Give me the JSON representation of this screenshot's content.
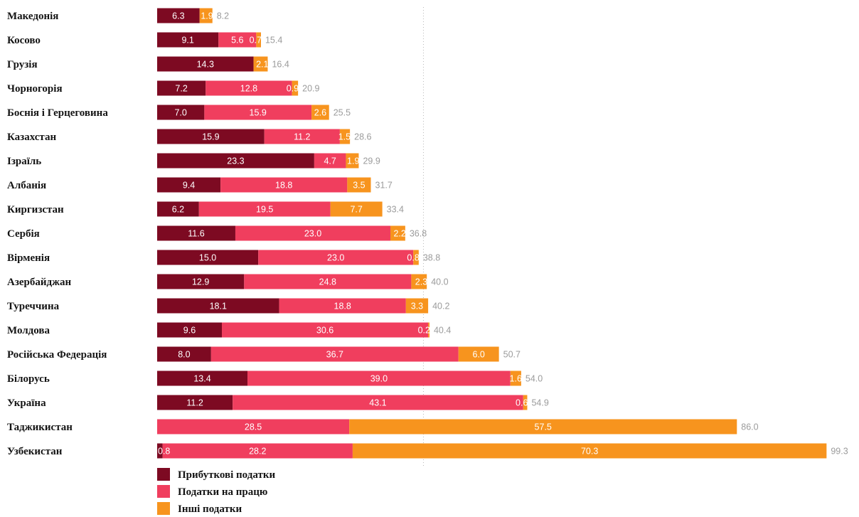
{
  "chart_data": {
    "type": "bar",
    "orientation": "horizontal",
    "stacked": true,
    "xlim": [
      0,
      100
    ],
    "grid": false,
    "legend_position": "bottom-left",
    "reference_line": 39.5,
    "categories": [
      "Македонія",
      "Косово",
      "Грузія",
      "Чорногорія",
      "Боснія і Герцеговина",
      "Казахстан",
      "Ізраїль",
      "Албанія",
      "Киргизстан",
      "Сербія",
      "Вірменія",
      "Азербайджан",
      "Туреччина",
      "Молдова",
      "Російська Федерація",
      "Білорусь",
      "Україна",
      "Таджикистан",
      "Узбекистан"
    ],
    "series": [
      {
        "name": "Прибуткові податки",
        "color": "#7d0a22",
        "values": [
          6.3,
          9.1,
          14.3,
          7.2,
          7.0,
          15.9,
          23.3,
          9.4,
          6.2,
          11.6,
          15.0,
          12.9,
          18.1,
          9.6,
          8.0,
          13.4,
          11.2,
          0,
          0.8
        ]
      },
      {
        "name": "Податки на працю",
        "color": "#f03e5e",
        "values": [
          0,
          5.6,
          0,
          12.8,
          15.9,
          11.2,
          4.7,
          18.8,
          19.5,
          23.0,
          23.0,
          24.8,
          18.8,
          30.6,
          36.7,
          39.0,
          43.1,
          28.5,
          28.2
        ]
      },
      {
        "name": "Інші податки",
        "color": "#f7941e",
        "values": [
          1.9,
          0.7,
          2.1,
          0.9,
          2.6,
          1.5,
          1.9,
          3.5,
          7.7,
          2.2,
          0.8,
          2.3,
          3.3,
          0.2,
          6.0,
          1.6,
          0.6,
          57.5,
          70.3
        ]
      }
    ],
    "totals": [
      8.2,
      15.4,
      16.4,
      20.9,
      25.5,
      28.6,
      29.9,
      31.7,
      33.4,
      36.8,
      38.8,
      40.0,
      40.2,
      40.4,
      50.7,
      54.0,
      54.9,
      86.0,
      99.3
    ]
  }
}
